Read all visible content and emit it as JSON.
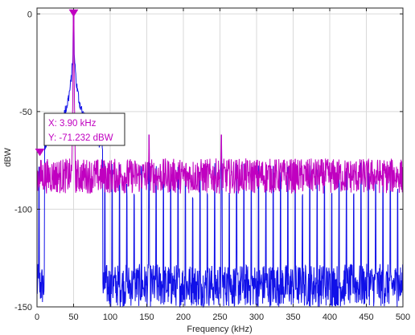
{
  "chart_data": {
    "type": "line",
    "title": "",
    "xlabel": "Frequency (kHz)",
    "ylabel": "dBW",
    "xlim": [
      0,
      500
    ],
    "ylim": [
      -150,
      3
    ],
    "xticks": [
      0,
      50,
      100,
      150,
      200,
      250,
      300,
      350,
      400,
      450,
      500
    ],
    "yticks": [
      0,
      -50,
      -100,
      -150
    ],
    "grid": true,
    "legend": "none",
    "series": [
      {
        "color": "#1010e8",
        "style": "spectrum",
        "peak": {
          "x": 50,
          "y": 0
        },
        "floor_range": [
          -150,
          -128
        ],
        "spur_top_range": [
          -95,
          -76
        ],
        "spur_spacing_khz": 10,
        "spur_offset_khz": 2.5,
        "extra_spurs": [
          {
            "x": 153,
            "y": -62
          },
          {
            "x": 252,
            "y": -62
          }
        ]
      },
      {
        "color": "#c000c0",
        "style": "spectrum",
        "peak": {
          "x": 50,
          "y": 0
        },
        "noise_range": [
          -92,
          -74
        ],
        "extra_spurs": [
          {
            "x": 153,
            "y": -62
          },
          {
            "x": 252,
            "y": -62
          }
        ]
      }
    ],
    "markers": [
      {
        "x": 50,
        "y": 0,
        "color": "#c000c0",
        "shape": "triangle-down"
      },
      {
        "x": 3.9,
        "y": -71.232,
        "color": "#c000c0",
        "shape": "triangle-down"
      }
    ],
    "datatip": {
      "x_text": "X: 3.90 kHz",
      "y_text": "Y: -71.232 dBW"
    }
  }
}
